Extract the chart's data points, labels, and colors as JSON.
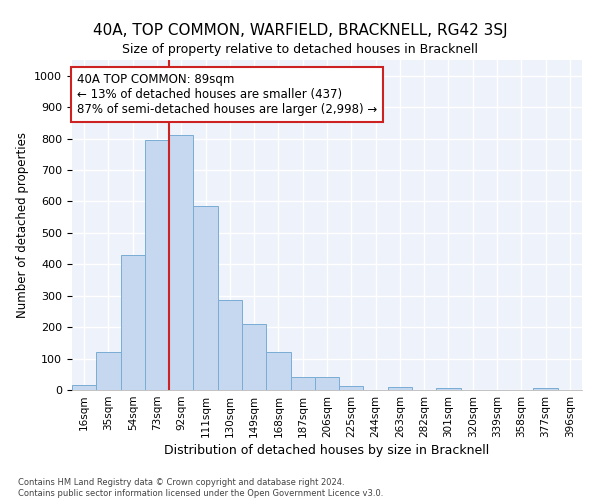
{
  "title": "40A, TOP COMMON, WARFIELD, BRACKNELL, RG42 3SJ",
  "subtitle": "Size of property relative to detached houses in Bracknell",
  "xlabel": "Distribution of detached houses by size in Bracknell",
  "ylabel": "Number of detached properties",
  "categories": [
    "16sqm",
    "35sqm",
    "54sqm",
    "73sqm",
    "92sqm",
    "111sqm",
    "130sqm",
    "149sqm",
    "168sqm",
    "187sqm",
    "206sqm",
    "225sqm",
    "244sqm",
    "263sqm",
    "282sqm",
    "301sqm",
    "320sqm",
    "339sqm",
    "358sqm",
    "377sqm",
    "396sqm"
  ],
  "values": [
    15,
    120,
    430,
    795,
    810,
    585,
    285,
    210,
    120,
    40,
    40,
    12,
    0,
    8,
    0,
    5,
    0,
    0,
    0,
    5,
    0
  ],
  "bar_color": "#c5d8f0",
  "bar_edge_color": "#7aadd4",
  "property_line_color": "#cc2222",
  "annotation_text": "40A TOP COMMON: 89sqm\n← 13% of detached houses are smaller (437)\n87% of semi-detached houses are larger (2,998) →",
  "annotation_box_color": "#cc2222",
  "background_color": "#eef2fb",
  "grid_color": "#ffffff",
  "footer_line1": "Contains HM Land Registry data © Crown copyright and database right 2024.",
  "footer_line2": "Contains public sector information licensed under the Open Government Licence v3.0.",
  "ylim": [
    0,
    1050
  ],
  "yticks": [
    0,
    100,
    200,
    300,
    400,
    500,
    600,
    700,
    800,
    900,
    1000
  ],
  "property_bar_index": 4,
  "title_fontsize": 11,
  "subtitle_fontsize": 9
}
